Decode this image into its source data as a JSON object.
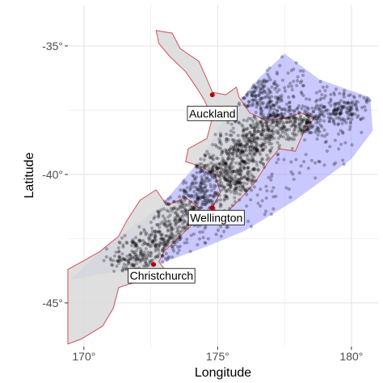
{
  "chart_data": {
    "type": "scatter",
    "title": "",
    "xlabel": "Longitude",
    "ylabel": "Latitude",
    "xlim": [
      169.4,
      181.0
    ],
    "ylim": [
      -46.7,
      -33.4
    ],
    "x_ticks": [
      {
        "value": 170,
        "label": "170°"
      },
      {
        "value": 175,
        "label": "175°"
      },
      {
        "value": 180,
        "label": "180°"
      }
    ],
    "y_ticks": [
      {
        "value": -35,
        "label": "-35°"
      },
      {
        "value": -40,
        "label": "-40°"
      },
      {
        "value": -45,
        "label": "-45°"
      }
    ],
    "grid": true,
    "colors": {
      "panel": "#ffffff",
      "grid": "#e3e3e3",
      "land_fill": "#d9d9d9",
      "coast": "#d0505a",
      "hull_fill": "#9d9dff",
      "points": "#000000",
      "city_marker": "#b00000"
    },
    "cities": [
      {
        "name": "Auckland",
        "x": 174.8,
        "y": -36.9
      },
      {
        "name": "Wellington",
        "x": 174.8,
        "y": -41.3
      },
      {
        "name": "Christchurch",
        "x": 172.6,
        "y": -43.5
      }
    ],
    "hull": [
      [
        169.5,
        -44.1
      ],
      [
        170.8,
        -42.8
      ],
      [
        172.8,
        -41.3
      ],
      [
        174.3,
        -39.5
      ],
      [
        175.2,
        -37.9
      ],
      [
        176.5,
        -36.3
      ],
      [
        177.5,
        -35.3
      ],
      [
        178.8,
        -36.3
      ],
      [
        180.7,
        -37.0
      ],
      [
        180.8,
        -38.3
      ],
      [
        180.0,
        -39.4
      ],
      [
        177.9,
        -41.0
      ],
      [
        176.0,
        -42.2
      ],
      [
        174.6,
        -42.8
      ],
      [
        172.5,
        -43.6
      ],
      [
        170.5,
        -43.9
      ]
    ],
    "coastline_north_island": [
      [
        172.7,
        -34.4
      ],
      [
        173.3,
        -34.5
      ],
      [
        173.6,
        -35.1
      ],
      [
        174.3,
        -35.6
      ],
      [
        174.6,
        -36.3
      ],
      [
        174.8,
        -36.8
      ],
      [
        175.3,
        -36.9
      ],
      [
        175.7,
        -36.6
      ],
      [
        175.8,
        -37.0
      ],
      [
        176.2,
        -37.6
      ],
      [
        176.8,
        -37.9
      ],
      [
        177.6,
        -37.8
      ],
      [
        178.1,
        -37.6
      ],
      [
        178.6,
        -37.8
      ],
      [
        178.2,
        -38.4
      ],
      [
        177.9,
        -39.1
      ],
      [
        177.3,
        -39.0
      ],
      [
        176.9,
        -39.5
      ],
      [
        176.4,
        -40.3
      ],
      [
        175.8,
        -41.0
      ],
      [
        175.2,
        -41.6
      ],
      [
        174.8,
        -41.3
      ],
      [
        175.1,
        -40.7
      ],
      [
        174.9,
        -40.0
      ],
      [
        174.4,
        -39.7
      ],
      [
        173.8,
        -39.5
      ],
      [
        173.9,
        -39.0
      ],
      [
        174.6,
        -38.6
      ],
      [
        174.8,
        -37.8
      ],
      [
        174.5,
        -37.1
      ],
      [
        174.2,
        -36.6
      ],
      [
        173.8,
        -36.0
      ],
      [
        173.2,
        -35.4
      ],
      [
        172.8,
        -34.9
      ]
    ],
    "coastline_south_island": [
      [
        169.4,
        -43.7
      ],
      [
        170.6,
        -43.0
      ],
      [
        171.3,
        -42.4
      ],
      [
        171.6,
        -41.8
      ],
      [
        172.1,
        -41.0
      ],
      [
        172.7,
        -40.6
      ],
      [
        173.1,
        -41.2
      ],
      [
        173.8,
        -40.9
      ],
      [
        174.3,
        -41.3
      ],
      [
        174.2,
        -41.8
      ],
      [
        173.6,
        -42.4
      ],
      [
        173.0,
        -43.0
      ],
      [
        172.8,
        -43.4
      ],
      [
        173.1,
        -43.8
      ],
      [
        172.2,
        -44.1
      ],
      [
        171.3,
        -44.4
      ],
      [
        171.1,
        -45.2
      ],
      [
        170.7,
        -45.9
      ],
      [
        169.9,
        -46.4
      ],
      [
        169.4,
        -46.6
      ]
    ],
    "cluster_centres": [
      [
        176.6,
        -36.9
      ],
      [
        179.6,
        -37.5
      ],
      [
        178.3,
        -37.9
      ],
      [
        176.4,
        -38.6
      ],
      [
        175.9,
        -39.2
      ],
      [
        175.7,
        -40.2
      ],
      [
        174.4,
        -40.9
      ],
      [
        173.6,
        -41.8
      ],
      [
        172.9,
        -42.6
      ],
      [
        171.9,
        -43.3
      ],
      [
        177.2,
        -38.0
      ],
      [
        175.0,
        -39.8
      ]
    ],
    "scatter_note": ""
  }
}
